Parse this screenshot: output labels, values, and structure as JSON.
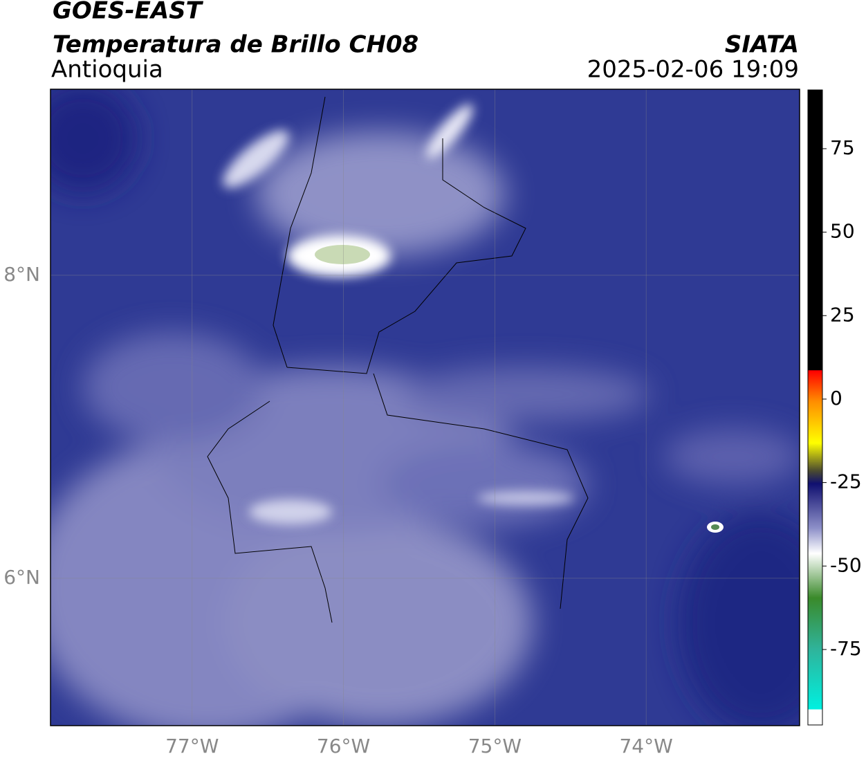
{
  "header": {
    "title": "GOES-EAST",
    "subtitle": "Temperatura de Brillo CH08",
    "region": "Antioquia",
    "source": "SIATA",
    "datetime": "2025-02-06 19:09"
  },
  "map": {
    "xlim": [
      -77.936,
      -72.986
    ],
    "ylim": [
      5.027,
      9.228
    ],
    "xticks": [
      {
        "value": -77,
        "label": "77°W"
      },
      {
        "value": -76,
        "label": "76°W"
      },
      {
        "value": -75,
        "label": "75°W"
      },
      {
        "value": -74,
        "label": "74°W"
      }
    ],
    "yticks": [
      {
        "value": 8,
        "label": "8°N"
      },
      {
        "value": 6,
        "label": "6°N"
      }
    ]
  },
  "colorbar": {
    "lim": [
      -97.6,
      92.6
    ],
    "ticks": [
      75,
      50,
      25,
      0,
      -25,
      -50,
      -75
    ]
  }
}
